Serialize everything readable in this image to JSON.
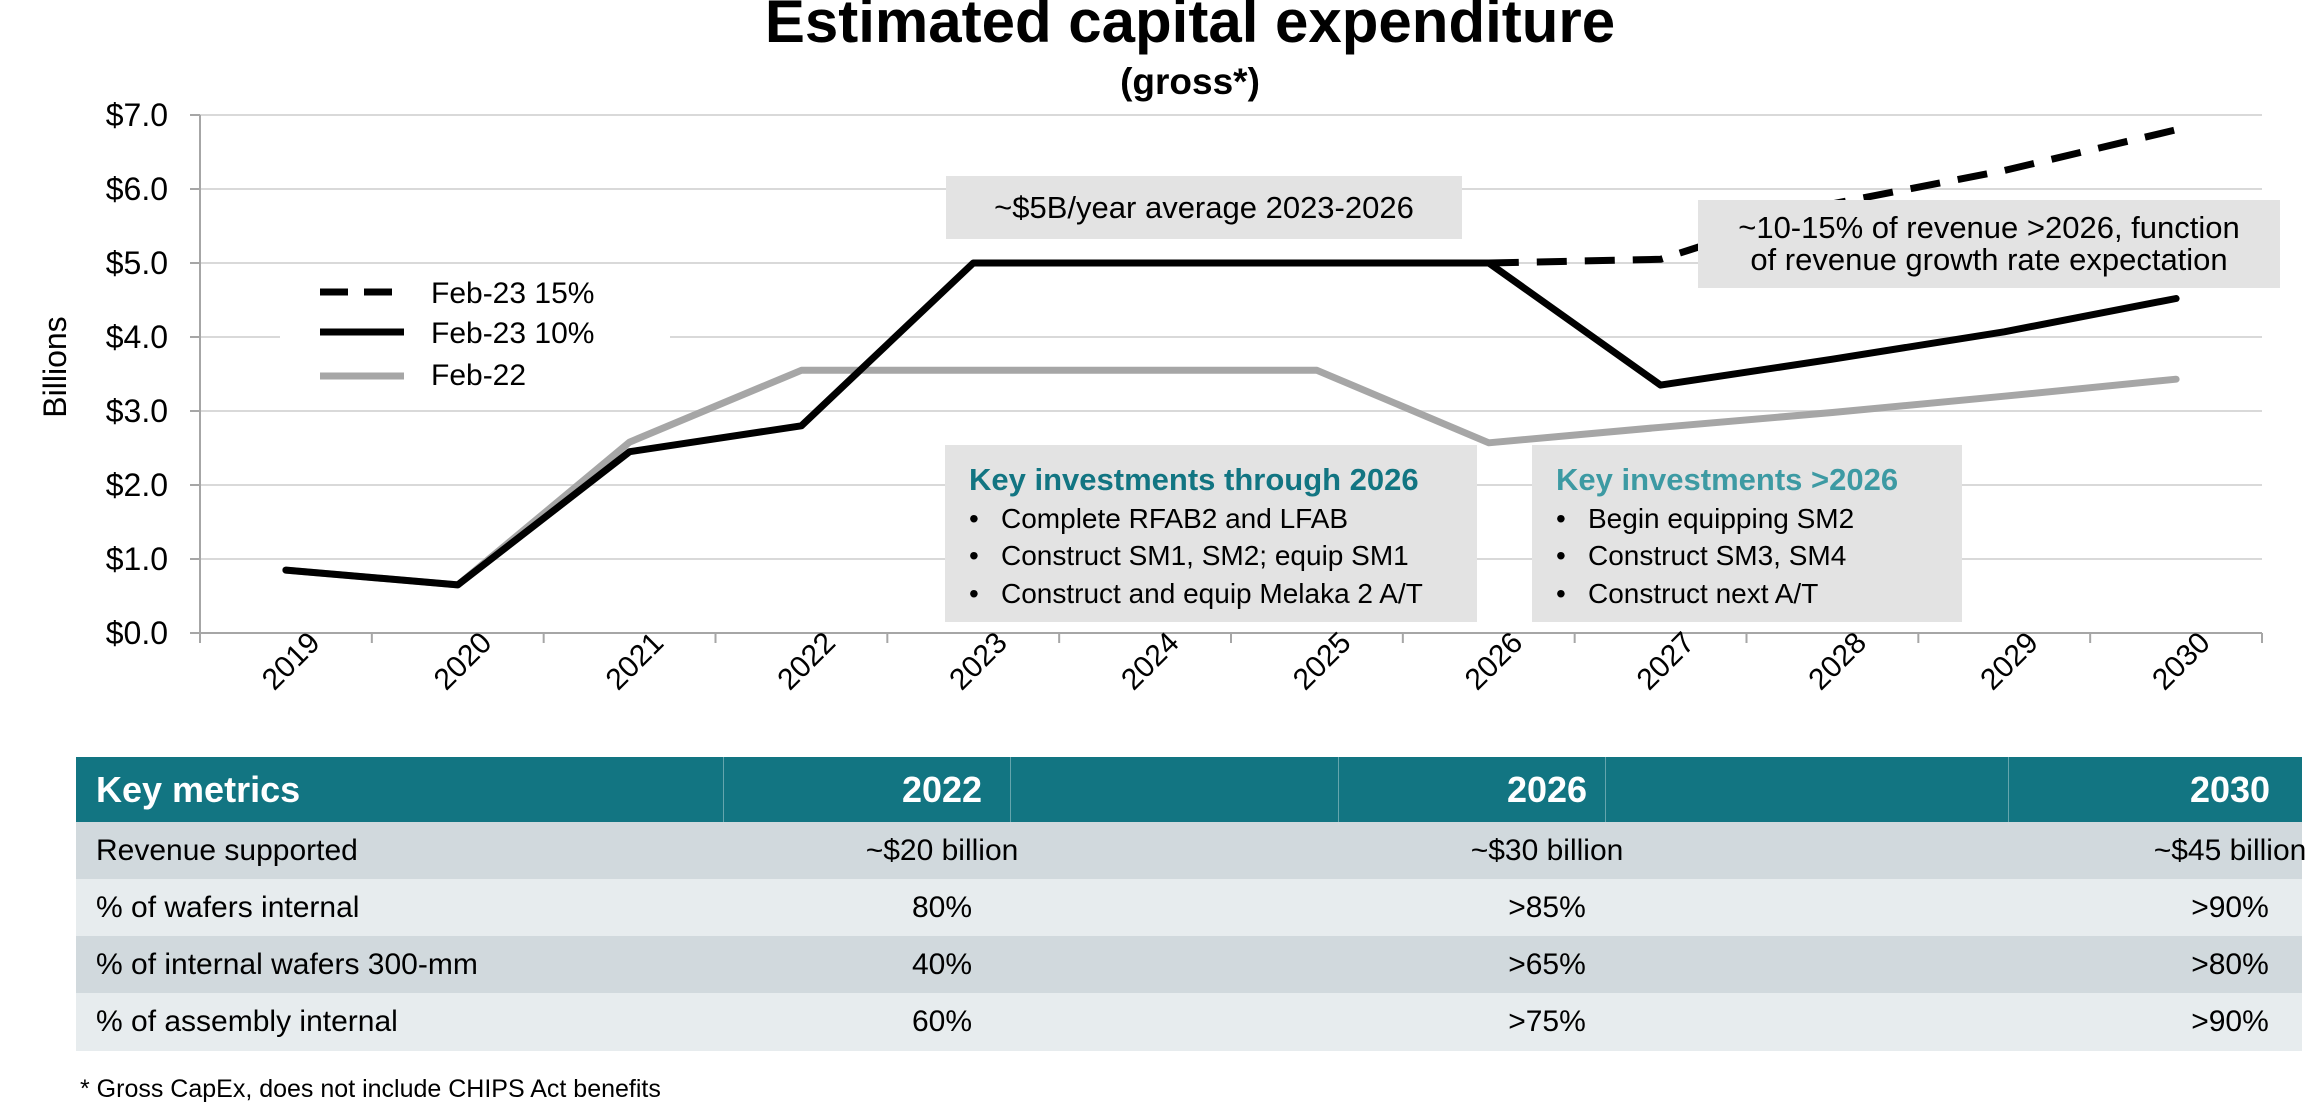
{
  "chart_data": {
    "type": "line",
    "title": "Estimated capital expenditure",
    "subtitle": "(gross*)",
    "ylabel": "Billions",
    "xlabel": "",
    "x": [
      "2019",
      "2020",
      "2021",
      "2022",
      "2023",
      "2024",
      "2025",
      "2026",
      "2027",
      "2028",
      "2029",
      "2030"
    ],
    "ylim": [
      0,
      7
    ],
    "yticks": [
      "$0.0",
      "$1.0",
      "$2.0",
      "$3.0",
      "$4.0",
      "$5.0",
      "$6.0",
      "$7.0"
    ],
    "grid": true,
    "legend_position": "left",
    "series": [
      {
        "name": "Feb-23 15%",
        "color": "#000000",
        "style": "dashed",
        "values": [
          null,
          null,
          null,
          null,
          null,
          null,
          null,
          5.0,
          5.05,
          5.8,
          6.25,
          6.8
        ]
      },
      {
        "name": "Feb-23 10%",
        "color": "#000000",
        "style": "solid",
        "values": [
          0.85,
          0.65,
          2.45,
          2.8,
          5.0,
          5.0,
          5.0,
          5.0,
          3.35,
          3.7,
          4.07,
          4.52
        ]
      },
      {
        "name": "Feb-22",
        "color": "#a6a6a6",
        "style": "solid",
        "values": [
          0.85,
          0.65,
          2.58,
          3.55,
          3.55,
          3.55,
          3.55,
          2.57,
          2.78,
          2.98,
          3.2,
          3.43
        ]
      }
    ],
    "annotations": {
      "average": "~$5B/year average 2023-2026",
      "revenue_line1": "~10-15% of revenue >2026, function",
      "revenue_line2": "of revenue growth rate expectation",
      "through_2026": {
        "title": "Key investments through 2026",
        "items": [
          "Complete RFAB2 and LFAB",
          "Construct SM1, SM2; equip SM1",
          "Construct and equip Melaka 2 A/T"
        ]
      },
      "after_2026": {
        "title": "Key investments >2026",
        "items": [
          "Begin equipping SM2",
          "Construct SM3, SM4",
          "Construct next A/T"
        ]
      }
    },
    "colors": {
      "teal": "#127582",
      "teal_light": "#3d9aa3",
      "box_gray": "#e3e3e3",
      "grid": "#d9d9d9"
    }
  },
  "metrics": {
    "header": [
      "Key metrics",
      "2022",
      "2026",
      "2030"
    ],
    "rows": [
      [
        "Revenue supported",
        "~$20 billion",
        "~$30 billion",
        "~$45 billion"
      ],
      [
        "% of wafers internal",
        "80%",
        ">85%",
        ">90%"
      ],
      [
        "% of internal wafers 300-mm",
        "40%",
        ">65%",
        ">80%"
      ],
      [
        "% of assembly internal",
        "60%",
        ">75%",
        ">90%"
      ]
    ]
  },
  "footnote": "* Gross CapEx, does not include CHIPS Act benefits"
}
